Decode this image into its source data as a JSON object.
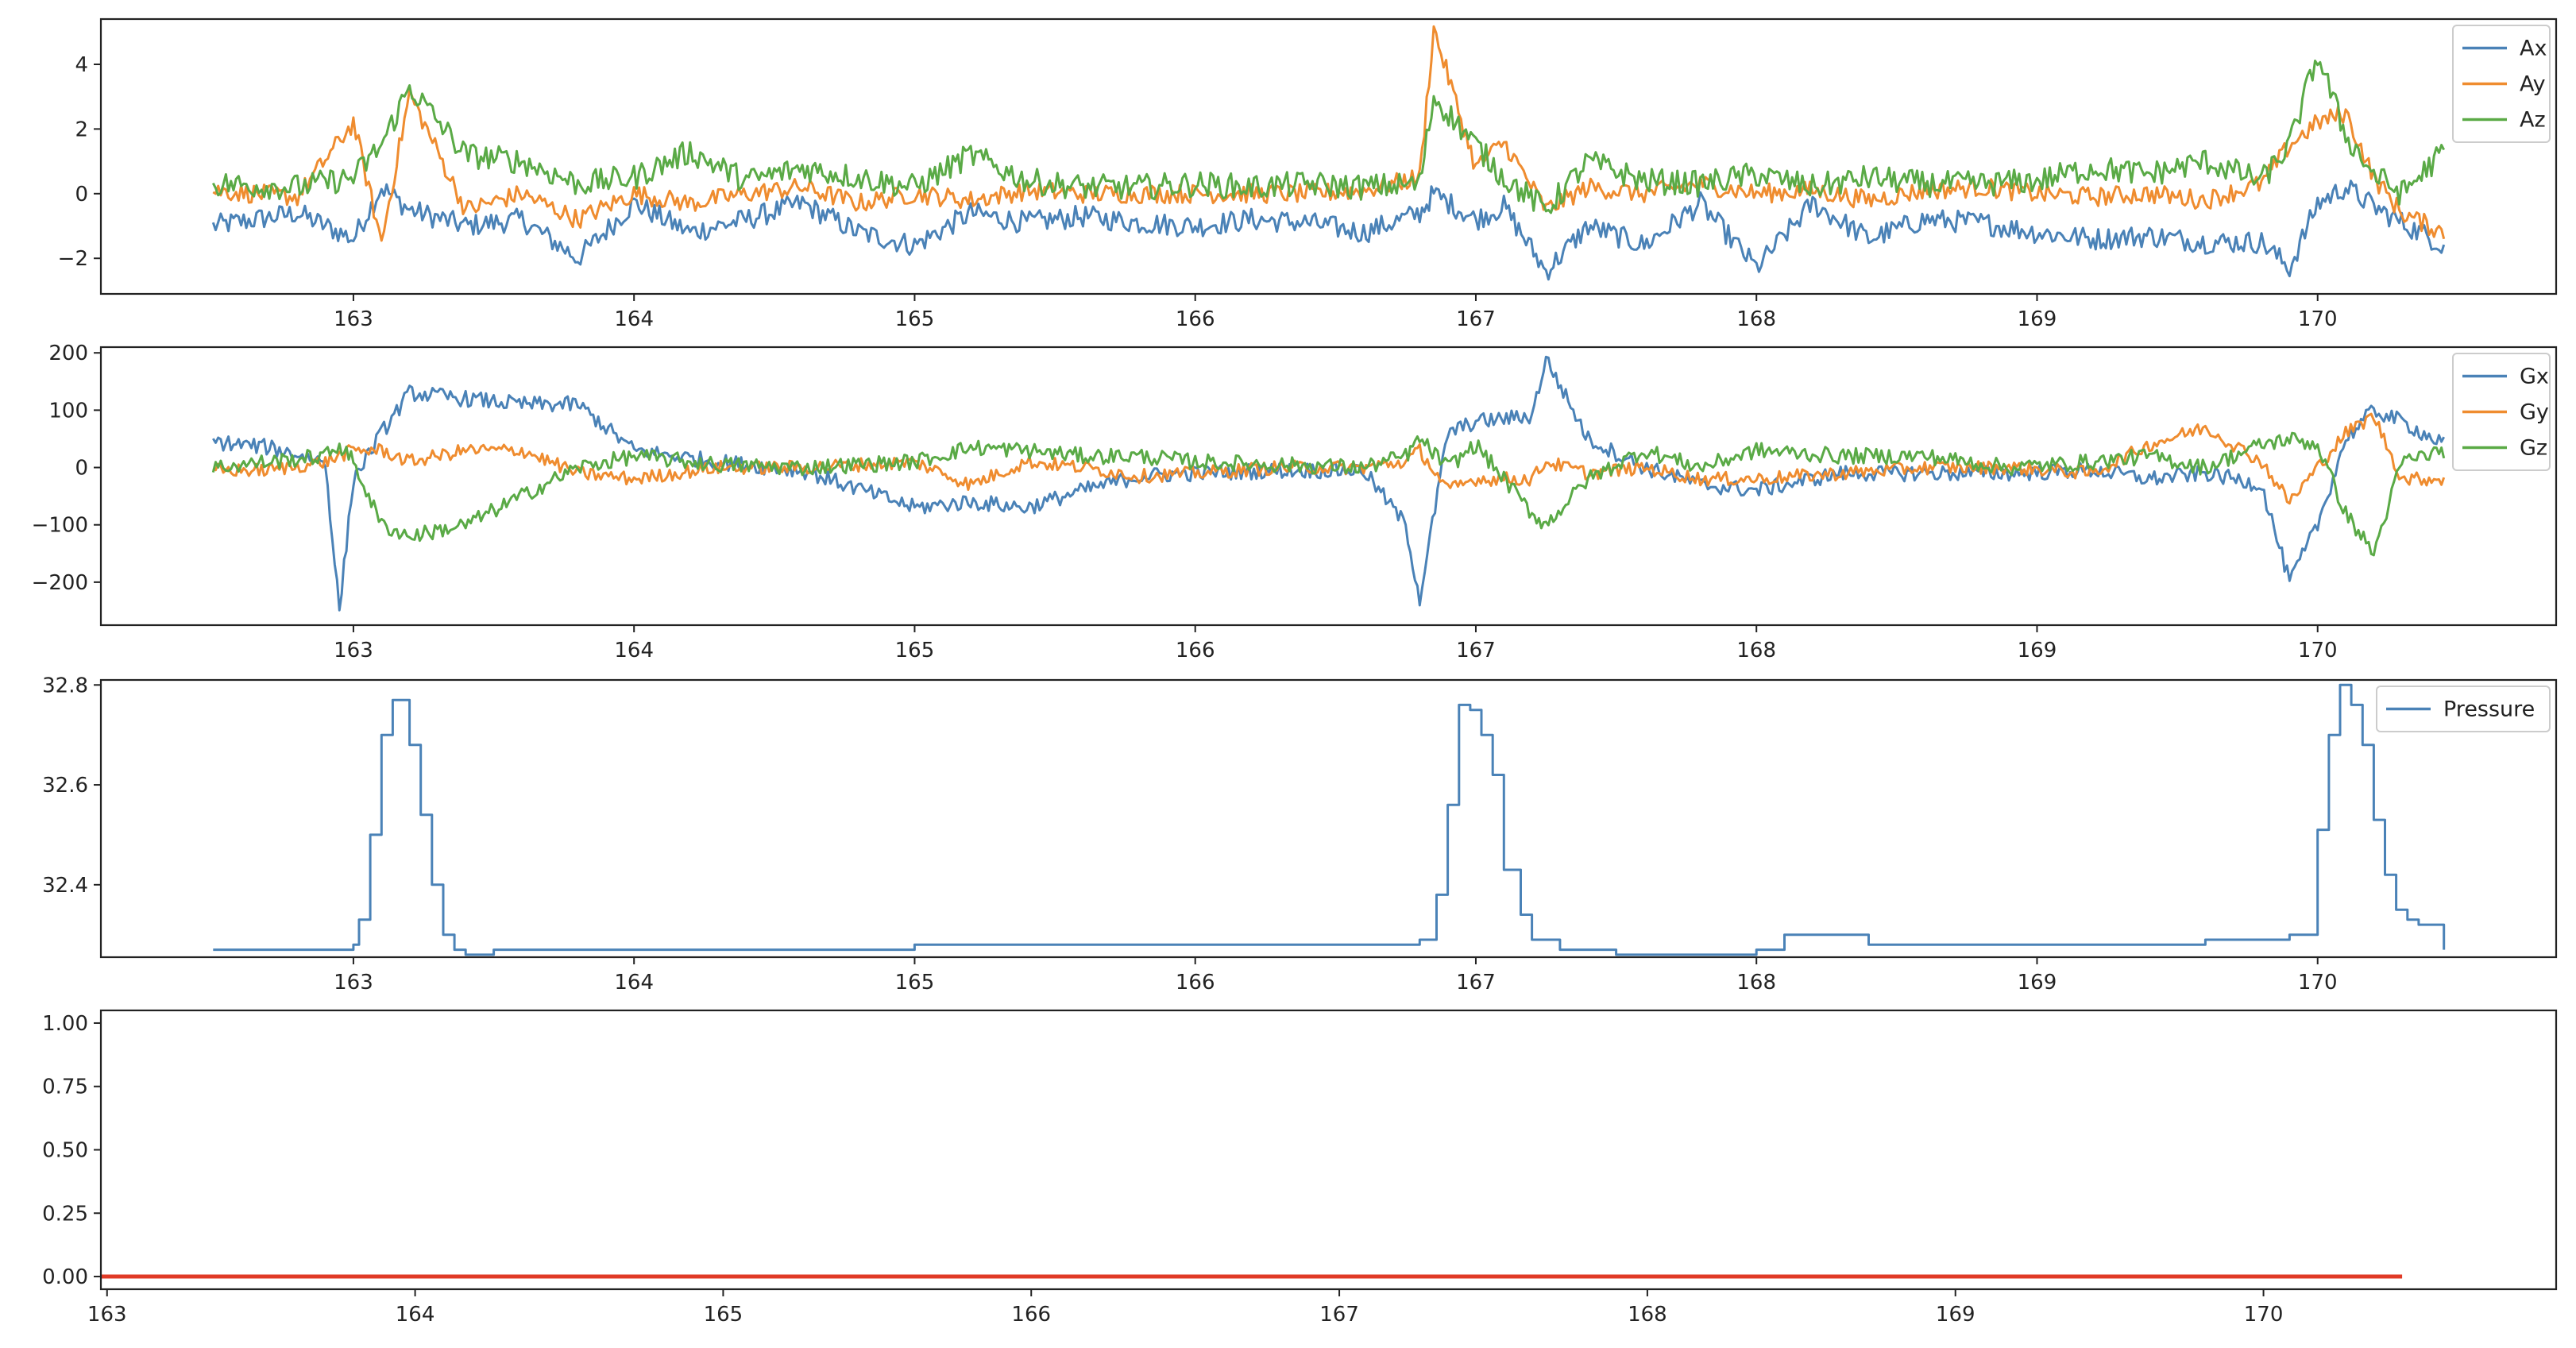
{
  "colors": {
    "blue": "#4a82b7",
    "orange": "#ef8c2f",
    "green": "#5aaa46",
    "red": "#e03a26"
  },
  "chart_data": [
    {
      "type": "line",
      "xlim": [
        162.1,
        170.85
      ],
      "ylim": [
        -3.1,
        5.4
      ],
      "xticks": [
        163,
        164,
        165,
        166,
        167,
        168,
        169,
        170
      ],
      "yticks": [
        -2,
        0,
        2,
        4
      ],
      "ytick_labels": [
        "−2",
        "0",
        "2",
        "4"
      ],
      "legend": "top-right",
      "x": [
        162.5,
        162.8,
        163.0,
        163.1,
        163.2,
        163.4,
        163.6,
        163.8,
        164.0,
        164.2,
        164.4,
        164.6,
        164.8,
        165.0,
        165.2,
        165.4,
        165.6,
        165.8,
        166.0,
        166.2,
        166.4,
        166.6,
        166.8,
        166.85,
        167.0,
        167.1,
        167.25,
        167.4,
        167.6,
        167.8,
        168.0,
        168.2,
        168.4,
        168.6,
        168.8,
        169.0,
        169.2,
        169.4,
        169.6,
        169.8,
        169.9,
        170.0,
        170.1,
        170.2,
        170.3,
        170.45
      ],
      "series": [
        {
          "name": "Ax",
          "color_key": "blue",
          "noise": 0.35,
          "values": [
            -1.0,
            -0.6,
            -1.4,
            0.2,
            -0.5,
            -1.0,
            -0.8,
            -2.0,
            -0.3,
            -1.2,
            -0.8,
            -0.3,
            -1.2,
            -1.6,
            -0.6,
            -0.9,
            -0.7,
            -0.9,
            -1.0,
            -0.8,
            -0.9,
            -1.2,
            -0.6,
            0.0,
            -0.8,
            -0.4,
            -2.4,
            -1.0,
            -1.6,
            -0.3,
            -2.3,
            -0.3,
            -1.4,
            -0.8,
            -0.9,
            -1.2,
            -1.4,
            -1.3,
            -1.5,
            -1.5,
            -2.3,
            -0.3,
            0.2,
            -0.4,
            -0.9,
            -1.6
          ]
        },
        {
          "name": "Ay",
          "color_key": "orange",
          "noise": 0.3,
          "values": [
            0.1,
            -0.1,
            2.2,
            -1.5,
            3.1,
            -0.5,
            0.0,
            -0.8,
            0.0,
            -0.3,
            0.0,
            0.2,
            -0.3,
            0.0,
            -0.2,
            0.1,
            0.0,
            0.0,
            0.0,
            0.0,
            0.0,
            0.1,
            0.5,
            5.1,
            0.8,
            1.6,
            -0.5,
            0.2,
            0.0,
            0.3,
            0.0,
            0.1,
            -0.2,
            0.1,
            0.2,
            0.0,
            -0.1,
            0.0,
            -0.2,
            0.3,
            1.5,
            2.2,
            2.5,
            0.5,
            -0.6,
            -1.2
          ]
        },
        {
          "name": "Az",
          "color_key": "green",
          "noise": 0.4,
          "values": [
            0.3,
            0.2,
            0.5,
            1.5,
            3.3,
            1.2,
            1.0,
            0.3,
            0.5,
            1.3,
            0.4,
            0.8,
            0.5,
            0.2,
            1.2,
            0.4,
            0.2,
            0.2,
            0.3,
            0.2,
            0.3,
            0.2,
            0.3,
            3.0,
            1.5,
            0.5,
            -0.5,
            1.0,
            0.4,
            0.3,
            0.6,
            0.2,
            0.5,
            0.3,
            0.3,
            0.4,
            0.8,
            0.6,
            1.0,
            0.4,
            1.5,
            4.3,
            1.8,
            0.6,
            0.0,
            1.3
          ]
        }
      ]
    },
    {
      "type": "line",
      "xlim": [
        162.1,
        170.85
      ],
      "ylim": [
        -275,
        210
      ],
      "xticks": [
        163,
        164,
        165,
        166,
        167,
        168,
        169,
        170
      ],
      "yticks": [
        -200,
        -100,
        0,
        100,
        200
      ],
      "ytick_labels": [
        "−200",
        "−100",
        "0",
        "100",
        "200"
      ],
      "legend": "top-right",
      "x": [
        162.5,
        162.7,
        162.9,
        162.95,
        163.0,
        163.1,
        163.2,
        163.4,
        163.6,
        163.8,
        164.0,
        164.3,
        164.6,
        165.0,
        165.2,
        165.4,
        165.6,
        165.8,
        166.0,
        166.3,
        166.6,
        166.75,
        166.8,
        166.9,
        167.0,
        167.2,
        167.25,
        167.4,
        167.6,
        167.8,
        168.0,
        168.3,
        168.6,
        168.9,
        169.2,
        169.4,
        169.6,
        169.8,
        169.9,
        170.0,
        170.1,
        170.2,
        170.3,
        170.45
      ],
      "series": [
        {
          "name": "Gx",
          "color_key": "blue",
          "noise": 14,
          "values": [
            45,
            35,
            10,
            -250,
            -20,
            60,
            130,
            120,
            110,
            110,
            30,
            10,
            -5,
            -70,
            -60,
            -70,
            -40,
            -15,
            -10,
            -5,
            -5,
            -100,
            -230,
            60,
            80,
            90,
            190,
            50,
            0,
            -30,
            -40,
            -10,
            -10,
            -10,
            -5,
            -20,
            -10,
            -30,
            -200,
            -100,
            50,
            100,
            80,
            40
          ]
        },
        {
          "name": "Gy",
          "color_key": "orange",
          "noise": 12,
          "values": [
            -5,
            -5,
            10,
            20,
            30,
            30,
            10,
            30,
            30,
            -10,
            -20,
            0,
            0,
            10,
            -30,
            10,
            0,
            -15,
            -10,
            0,
            0,
            10,
            30,
            -40,
            -20,
            -20,
            10,
            -10,
            0,
            -20,
            -20,
            -10,
            0,
            0,
            -10,
            40,
            70,
            10,
            -60,
            0,
            60,
            90,
            -20,
            -20
          ]
        },
        {
          "name": "Gz",
          "color_key": "green",
          "noise": 14,
          "values": [
            0,
            10,
            20,
            40,
            10,
            -100,
            -120,
            -100,
            -50,
            0,
            20,
            5,
            0,
            10,
            35,
            30,
            20,
            20,
            10,
            5,
            0,
            20,
            50,
            0,
            40,
            -80,
            -100,
            -20,
            30,
            0,
            30,
            20,
            20,
            0,
            10,
            20,
            0,
            40,
            50,
            40,
            -80,
            -150,
            10,
            30
          ]
        }
      ]
    },
    {
      "type": "line",
      "step": true,
      "xlim": [
        162.1,
        170.85
      ],
      "ylim": [
        32.255,
        32.81
      ],
      "xticks": [
        163,
        164,
        165,
        166,
        167,
        168,
        169,
        170
      ],
      "yticks": [
        32.4,
        32.6,
        32.8
      ],
      "ytick_labels": [
        "32.4",
        "32.6",
        "32.8"
      ],
      "legend": "top-right",
      "x": [
        162.5,
        163.0,
        163.02,
        163.06,
        163.1,
        163.14,
        163.2,
        163.24,
        163.28,
        163.32,
        163.36,
        163.4,
        163.5,
        164.0,
        165.0,
        166.0,
        166.5,
        166.8,
        166.86,
        166.9,
        166.94,
        166.98,
        167.02,
        167.06,
        167.1,
        167.16,
        167.2,
        167.3,
        167.5,
        168.0,
        168.1,
        168.4,
        169.0,
        169.6,
        169.9,
        170.0,
        170.04,
        170.08,
        170.12,
        170.16,
        170.2,
        170.24,
        170.28,
        170.32,
        170.36,
        170.45
      ],
      "series": [
        {
          "name": "Pressure",
          "color_key": "blue",
          "noise": 0,
          "values": [
            32.27,
            32.28,
            32.33,
            32.5,
            32.7,
            32.77,
            32.68,
            32.54,
            32.4,
            32.3,
            32.27,
            32.26,
            32.27,
            32.27,
            32.28,
            32.28,
            32.28,
            32.29,
            32.38,
            32.56,
            32.76,
            32.75,
            32.7,
            32.62,
            32.43,
            32.34,
            32.29,
            32.27,
            32.26,
            32.27,
            32.3,
            32.28,
            32.28,
            32.29,
            32.3,
            32.51,
            32.7,
            32.8,
            32.76,
            32.68,
            32.53,
            32.42,
            32.35,
            32.33,
            32.32,
            32.27
          ]
        }
      ]
    },
    {
      "type": "line",
      "xlim": [
        162.98,
        170.95
      ],
      "ylim": [
        -0.05,
        1.05
      ],
      "xticks": [
        163,
        164,
        165,
        166,
        167,
        168,
        169,
        170
      ],
      "yticks": [
        0.0,
        0.25,
        0.5,
        0.75,
        1.0
      ],
      "ytick_labels": [
        "0.00",
        "0.25",
        "0.50",
        "0.75",
        "1.00"
      ],
      "legend": "none",
      "x": [
        162.98,
        170.45
      ],
      "series": [
        {
          "name": "",
          "color_key": "red",
          "noise": 0,
          "width": 5,
          "values": [
            0,
            0
          ]
        }
      ]
    }
  ]
}
